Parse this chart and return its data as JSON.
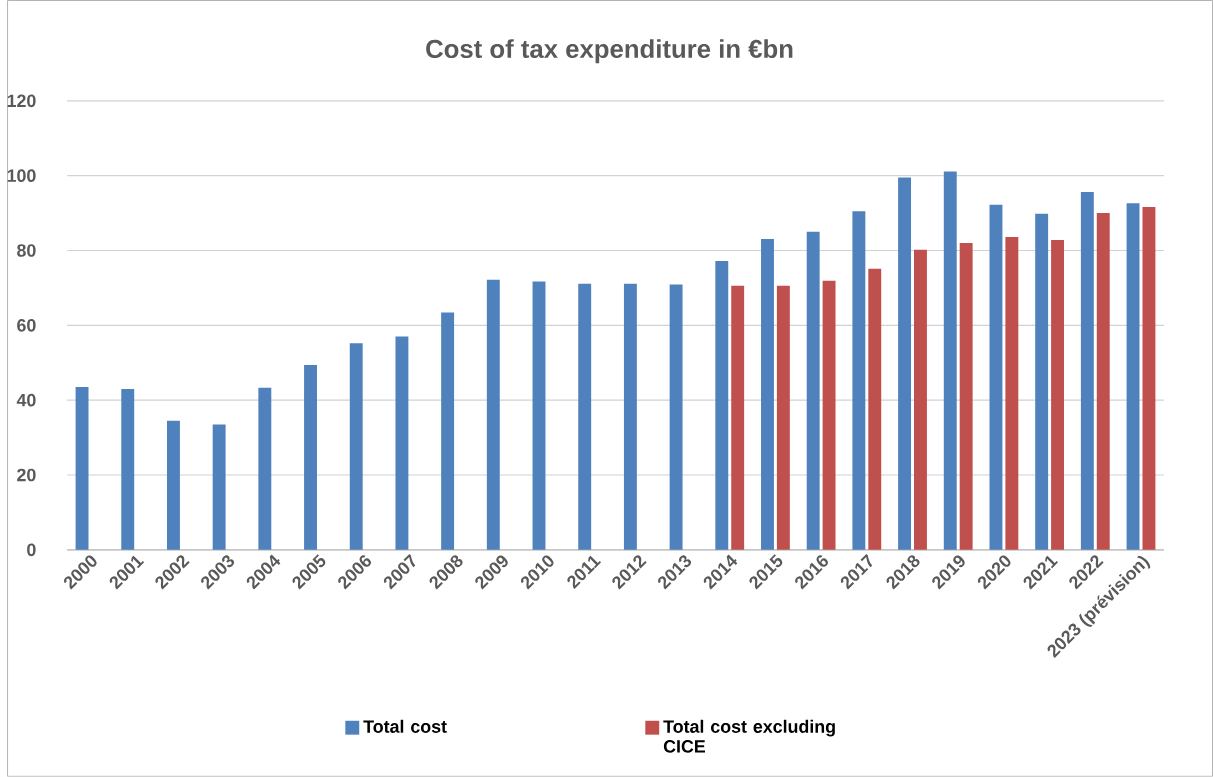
{
  "chart_data": {
    "type": "bar",
    "title": "Cost of tax expenditure in €bn",
    "categories": [
      "2000",
      "2001",
      "2002",
      "2003",
      "2004",
      "2005",
      "2006",
      "2007",
      "2008",
      "2009",
      "2010",
      "2011",
      "2012",
      "2013",
      "2014",
      "2015",
      "2016",
      "2017",
      "2018",
      "2019",
      "2020",
      "2021",
      "2022",
      "2023 (prévision)"
    ],
    "series": [
      {
        "name": "Total cost",
        "color": "#4f81bd",
        "values": [
          43.5,
          43,
          34.5,
          33.5,
          43.3,
          49.4,
          55.2,
          57,
          63.4,
          72.2,
          71.7,
          71.1,
          71.1,
          70.9,
          77.2,
          83.1,
          85,
          90.5,
          99.5,
          101.1,
          92.2,
          89.8,
          95.6,
          92.6
        ]
      },
      {
        "name": "Total cost excluding CICE",
        "color": "#c0504d",
        "values": [
          null,
          null,
          null,
          null,
          null,
          null,
          null,
          null,
          null,
          null,
          null,
          null,
          null,
          null,
          70.6,
          70.6,
          71.9,
          75.1,
          80.2,
          82,
          83.6,
          82.8,
          90,
          91.6
        ]
      }
    ],
    "ylim": [
      0,
      120
    ],
    "yticks": [
      0,
      20,
      40,
      60,
      80,
      100,
      120
    ],
    "grid": "y",
    "legend": "bottom"
  }
}
